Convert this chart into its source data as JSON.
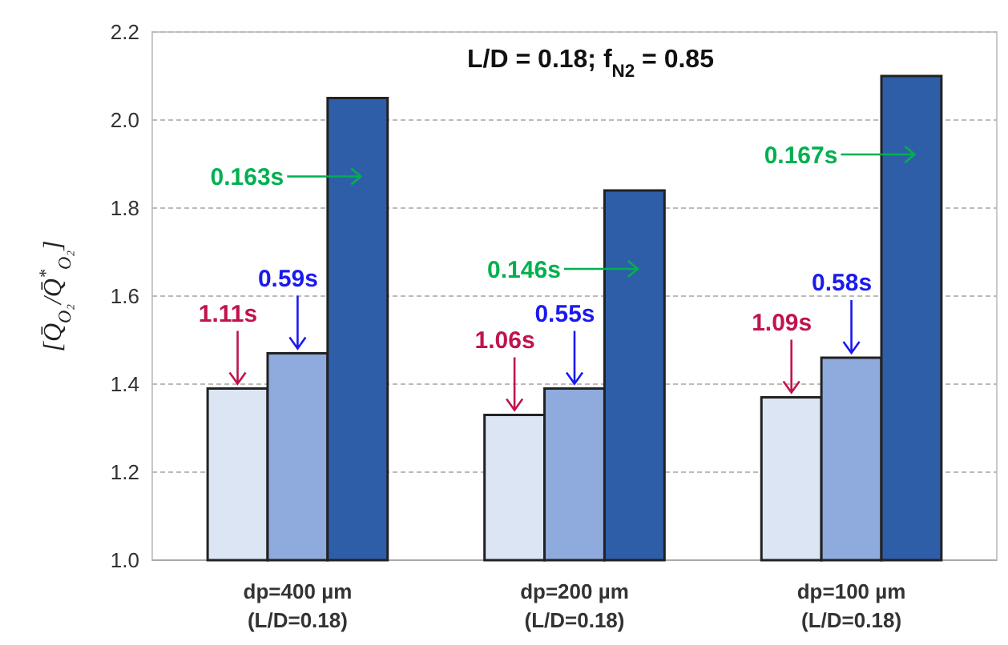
{
  "chart_data": {
    "type": "bar",
    "title": "L/D = 0.18; f$_{N2}$ = 0.85",
    "ylabel": "[Q̄$_{O₂}$/Q̄$^{*}$$_{O₂}$]",
    "categories": [
      "dp=400 µm\n(L/D=0.18)",
      "dp=200 µm\n(L/D=0.18)",
      "dp=100 µm\n(L/D=0.18)"
    ],
    "series": [
      {
        "color": "#dbe5f4",
        "values": [
          1.39,
          1.33,
          1.37
        ]
      },
      {
        "color": "#8faadc",
        "values": [
          1.47,
          1.39,
          1.46
        ]
      },
      {
        "color": "#2f5ea8",
        "values": [
          2.05,
          1.84,
          2.1
        ]
      }
    ],
    "ylim": [
      1.0,
      2.2
    ],
    "yticks": [
      {
        "value": 1.0,
        "label": "1.0"
      },
      {
        "value": 1.2,
        "label": "1.2"
      },
      {
        "value": 1.4,
        "label": "1.4"
      },
      {
        "value": 1.6,
        "label": "1.6"
      },
      {
        "value": 1.8,
        "label": "1.8"
      },
      {
        "value": 2.0,
        "label": "2.0"
      },
      {
        "value": 2.2,
        "label": "2.2"
      }
    ],
    "grid": "y",
    "annotations": [
      {
        "text": "1.11s",
        "y": 1.39
      },
      {
        "text": "0.59s",
        "x": "dp=400 µm\n(L/D=0.18)",
        "y": 1.47
      },
      "0.163s",
      {
        "text": "1.06s",
        "y": 1.33
      },
      {
        "text": "0.55s",
        "x": "dp=200 µm\n(L/D=0.18)",
        "y": 1.39
      },
      "0.146s",
      {
        "text": "1.09s",
        "y": 1.37
      },
      {
        "text": "0.58s",
        "x": "dp=100 µm\n(L/D=0.18)",
        "y": 1.46
      },
      "0.167s"
    ]
  }
}
